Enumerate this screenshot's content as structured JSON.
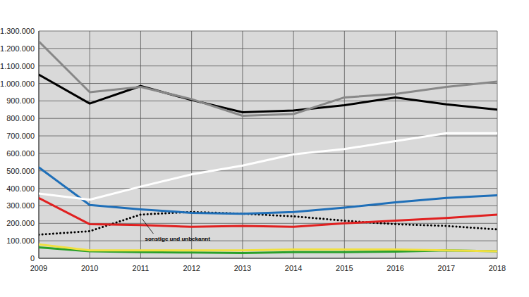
{
  "chart_data": {
    "type": "line",
    "x": [
      2009,
      2010,
      2011,
      2012,
      2013,
      2014,
      2015,
      2016,
      2017,
      2018
    ],
    "xlim": [
      2009,
      2018
    ],
    "xticks": [
      2009,
      2010,
      2011,
      2012,
      2013,
      2014,
      2015,
      2016,
      2017,
      2018
    ],
    "ylim": [
      0,
      1300000
    ],
    "yticks": [
      0,
      {
        "value": 100000,
        "label": "100.000"
      },
      {
        "value": 200000,
        "label": "200.000"
      },
      {
        "value": 300000,
        "label": "300.000"
      },
      {
        "value": 400000,
        "label": "400.000"
      },
      {
        "value": 500000,
        "label": "500.000"
      },
      {
        "value": 600000,
        "label": "600.000"
      },
      {
        "value": 700000,
        "label": "700.000"
      },
      {
        "value": 800000,
        "label": "800.000"
      },
      {
        "value": 900000,
        "label": "900.000"
      },
      {
        "value": 1000000,
        "label": "1.000.000"
      },
      {
        "value": 1100000,
        "label": "1.100.000"
      },
      {
        "value": 1200000,
        "label": "1.200.000"
      },
      {
        "value": 1300000,
        "label": "1.300.000"
      }
    ],
    "grid": true,
    "series": [
      {
        "name": "sonstige und unbekannt",
        "color": "#000000",
        "line_style": "dotted",
        "values": [
          135000,
          155000,
          250000,
          265000,
          255000,
          240000,
          215000,
          195000,
          185000,
          165000
        ]
      },
      {
        "color": "#2aa02a",
        "line_style": "solid",
        "values": [
          62000,
          40000,
          35000,
          33000,
          30000,
          35000,
          35000,
          38000,
          45000,
          40000
        ]
      },
      {
        "color": "#f0e040",
        "line_style": "solid",
        "values": [
          80000,
          45000,
          45000,
          45000,
          45000,
          50000,
          50000,
          50000,
          45000,
          40000
        ]
      },
      {
        "color": "#e02020",
        "line_style": "solid",
        "values": [
          345000,
          195000,
          190000,
          180000,
          185000,
          180000,
          200000,
          215000,
          230000,
          250000
        ]
      },
      {
        "color": "#1f6fb8",
        "line_style": "solid",
        "values": [
          520000,
          305000,
          280000,
          260000,
          255000,
          265000,
          290000,
          320000,
          345000,
          360000
        ]
      },
      {
        "color": "#ffffff",
        "line_style": "solid",
        "values": [
          370000,
          335000,
          410000,
          480000,
          530000,
          595000,
          625000,
          670000,
          715000,
          715000
        ]
      },
      {
        "color": "#000000",
        "line_style": "solid",
        "values": [
          1050000,
          885000,
          985000,
          905000,
          835000,
          845000,
          875000,
          920000,
          880000,
          850000
        ]
      },
      {
        "color": "#888888",
        "line_style": "solid",
        "values": [
          1240000,
          950000,
          980000,
          910000,
          815000,
          825000,
          920000,
          940000,
          980000,
          1010000
        ]
      }
    ]
  }
}
